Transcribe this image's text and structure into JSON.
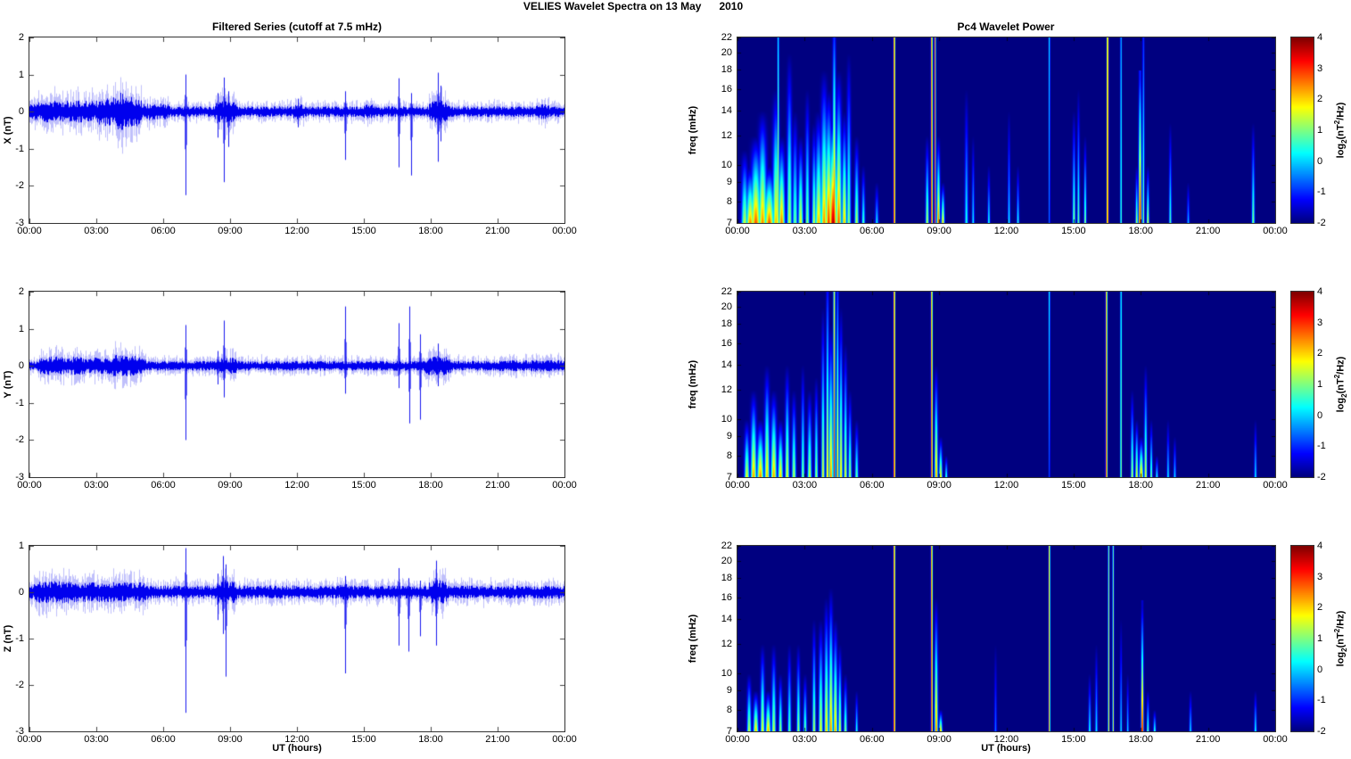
{
  "page_title": "VELIES Wavelet Spectra on 13 May      2010",
  "left_column": {
    "title": "Filtered Series (cutoff at 7.5 mHz)",
    "xlabel": "UT (hours)",
    "xticks": [
      "00:00",
      "03:00",
      "06:00",
      "09:00",
      "12:00",
      "15:00",
      "18:00",
      "21:00",
      "00:00"
    ]
  },
  "right_column": {
    "title": "Pc4 Wavelet Power",
    "xlabel": "UT (hours)",
    "xticks": [
      "00:00",
      "03:00",
      "06:00",
      "09:00",
      "12:00",
      "15:00",
      "18:00",
      "21:00",
      "00:00"
    ],
    "colorbar": {
      "clim": [
        -2,
        4
      ],
      "ticks": [
        4,
        3,
        2,
        1,
        0,
        -1,
        -2
      ],
      "label_parts": {
        "pre": "log",
        "sub": "2",
        "mid": "(nT",
        "sup": "2",
        "post": "/Hz)"
      }
    }
  },
  "chart_data": [
    {
      "type": "line",
      "id": "x-series",
      "ylabel": "X (nT)",
      "ylim": [
        -3,
        2
      ],
      "yticks": [
        2,
        1,
        0,
        -1,
        -2,
        -3
      ],
      "x_range_hours": [
        0,
        24
      ],
      "line_color": "#0000EE",
      "noise_base": 0.12,
      "_envelope_format": "[startHour, endHour, extraAmplitude_nT]",
      "envelope": [
        [
          0.0,
          0.4,
          0.1
        ],
        [
          0.4,
          3.0,
          0.13
        ],
        [
          3.0,
          5.0,
          0.22
        ],
        [
          3.9,
          4.6,
          0.1
        ],
        [
          5.0,
          6.3,
          0.08
        ],
        [
          8.3,
          9.3,
          0.12
        ],
        [
          11.8,
          12.3,
          0.06
        ],
        [
          14.9,
          15.6,
          0.04
        ],
        [
          17.9,
          18.8,
          0.13
        ],
        [
          22.7,
          23.3,
          0.05
        ]
      ],
      "_spikes_format": "[hour, max_nT, min_nT]",
      "spikes": [
        [
          6.98,
          1.0,
          -2.25
        ],
        [
          8.45,
          0.5,
          -0.7
        ],
        [
          8.72,
          0.92,
          -1.9
        ],
        [
          8.92,
          0.55,
          -0.95
        ],
        [
          12.05,
          0.35,
          -0.42
        ],
        [
          14.15,
          0.55,
          -1.3
        ],
        [
          16.55,
          0.9,
          -1.5
        ],
        [
          17.1,
          0.5,
          -1.72
        ],
        [
          18.3,
          1.05,
          -1.35
        ],
        [
          18.45,
          0.7,
          -0.8
        ]
      ]
    },
    {
      "type": "line",
      "id": "y-series",
      "ylabel": "Y (nT)",
      "ylim": [
        -3,
        2
      ],
      "yticks": [
        2,
        1,
        0,
        -1,
        -2,
        -3
      ],
      "x_range_hours": [
        0,
        24
      ],
      "line_color": "#0000EE",
      "noise_base": 0.11,
      "envelope": [
        [
          0.3,
          2.6,
          0.1
        ],
        [
          2.6,
          5.2,
          0.08
        ],
        [
          3.7,
          4.8,
          0.06
        ],
        [
          8.4,
          9.3,
          0.08
        ],
        [
          17.7,
          18.9,
          0.1
        ],
        [
          21.0,
          24.0,
          0.02
        ]
      ],
      "spikes": [
        [
          6.98,
          1.1,
          -2.0
        ],
        [
          8.45,
          0.4,
          -0.5
        ],
        [
          8.72,
          1.22,
          -0.85
        ],
        [
          14.15,
          1.6,
          -0.75
        ],
        [
          16.55,
          1.15,
          -0.6
        ],
        [
          17.05,
          1.6,
          -1.55
        ],
        [
          17.5,
          0.85,
          -1.45
        ],
        [
          18.3,
          0.6,
          -0.55
        ]
      ]
    },
    {
      "type": "line",
      "id": "z-series",
      "ylabel": "Z (nT)",
      "ylim": [
        -3,
        1
      ],
      "yticks": [
        1,
        0,
        -1,
        -2,
        -3
      ],
      "x_range_hours": [
        0,
        24
      ],
      "line_color": "#0000EE",
      "noise_base": 0.12,
      "envelope": [
        [
          0.2,
          2.2,
          0.08
        ],
        [
          2.2,
          5.3,
          0.06
        ],
        [
          8.4,
          9.3,
          0.08
        ],
        [
          13.9,
          14.4,
          0.03
        ],
        [
          17.9,
          18.7,
          0.1
        ]
      ],
      "spikes": [
        [
          6.98,
          0.95,
          -2.6
        ],
        [
          8.45,
          0.4,
          -0.6
        ],
        [
          8.68,
          0.78,
          -0.9
        ],
        [
          8.8,
          0.6,
          -1.82
        ],
        [
          14.15,
          0.35,
          -1.75
        ],
        [
          16.55,
          0.52,
          -1.15
        ],
        [
          17.0,
          0.3,
          -1.28
        ],
        [
          17.5,
          0.25,
          -0.95
        ],
        [
          18.25,
          0.68,
          -1.15
        ]
      ]
    },
    {
      "type": "heatmap",
      "id": "x-wavelet",
      "ylabel": "freq (mHz)",
      "yticks": [
        22,
        20,
        18,
        16,
        14,
        12,
        10,
        9,
        8,
        7
      ],
      "freq_range_mhz": [
        7,
        22
      ],
      "clim": [
        -2,
        4
      ],
      "colormap": "jet",
      "_events_format": "[hour, topFreq_mHz, log2Power_at_7mHz, log2Power_at_top, halfWidth_min]",
      "events": [
        [
          0.3,
          11,
          1.5,
          -2,
          8
        ],
        [
          0.55,
          10,
          2.5,
          -2,
          10
        ],
        [
          0.8,
          12,
          2.8,
          -2,
          12
        ],
        [
          1.1,
          14,
          2.5,
          -2,
          10
        ],
        [
          1.4,
          10,
          2.8,
          -2,
          12
        ],
        [
          1.7,
          16,
          2.2,
          -2,
          8
        ],
        [
          1.8,
          22.4,
          1.8,
          0.2,
          2.2
        ],
        [
          1.95,
          12,
          2.6,
          -2,
          8
        ],
        [
          2.3,
          20,
          1.5,
          -2,
          6
        ],
        [
          2.55,
          14,
          1.0,
          -2,
          6
        ],
        [
          2.8,
          12,
          1.8,
          -2,
          6
        ],
        [
          3.1,
          16,
          1.2,
          -2,
          5
        ],
        [
          3.4,
          13,
          1.6,
          -2,
          5
        ],
        [
          3.6,
          14,
          2.2,
          -2,
          8
        ],
        [
          3.85,
          18,
          2.5,
          -2,
          8
        ],
        [
          4.05,
          16,
          3.0,
          -2,
          8
        ],
        [
          4.25,
          13,
          3.8,
          -1.5,
          10
        ],
        [
          4.3,
          22.4,
          3.2,
          -1,
          4
        ],
        [
          4.5,
          18,
          2.8,
          -2,
          7
        ],
        [
          4.75,
          14,
          2.2,
          -2,
          6
        ],
        [
          4.95,
          20,
          1.2,
          -2,
          5
        ],
        [
          5.3,
          12,
          1.5,
          -2,
          5
        ],
        [
          5.6,
          10,
          0.8,
          -2,
          4
        ],
        [
          6.2,
          9,
          0.2,
          -2,
          4
        ],
        [
          6.98,
          22.4,
          3.6,
          3.0,
          2.2
        ],
        [
          8.45,
          12,
          1.5,
          -2,
          4
        ],
        [
          8.65,
          22.4,
          3.4,
          2.8,
          2.2
        ],
        [
          8.8,
          22.4,
          3.2,
          2.5,
          2
        ],
        [
          8.95,
          12,
          2.8,
          -2,
          4
        ],
        [
          9.15,
          9,
          2.2,
          -2,
          4
        ],
        [
          10.2,
          16,
          0.5,
          -2,
          4
        ],
        [
          10.5,
          12,
          0.3,
          -2,
          3
        ],
        [
          11.2,
          10,
          0.5,
          -2,
          3
        ],
        [
          12.1,
          14,
          0.3,
          -2,
          3
        ],
        [
          12.5,
          10,
          0.5,
          -2,
          3
        ],
        [
          13.9,
          22.4,
          -0.5,
          0.3,
          2
        ],
        [
          15.0,
          14,
          1.2,
          -2,
          3.5
        ],
        [
          15.2,
          16,
          1.0,
          -2,
          3
        ],
        [
          15.5,
          12,
          1.3,
          -2,
          3
        ],
        [
          16.5,
          22.4,
          3.5,
          2.8,
          2.2
        ],
        [
          17.1,
          22.4,
          1.0,
          0.0,
          2
        ],
        [
          17.8,
          10,
          1.5,
          -2,
          3
        ],
        [
          17.95,
          17,
          3.8,
          -1,
          3.5
        ],
        [
          18.1,
          22.4,
          1.2,
          -1,
          2.5
        ],
        [
          18.3,
          10,
          1.8,
          -2,
          3
        ],
        [
          19.3,
          13,
          0.8,
          -2,
          3
        ],
        [
          20.1,
          9,
          0.0,
          -2,
          3
        ],
        [
          23.0,
          13,
          1.2,
          -2,
          3.5
        ]
      ]
    },
    {
      "type": "heatmap",
      "id": "y-wavelet",
      "ylabel": "freq (mHz)",
      "yticks": [
        22,
        20,
        18,
        16,
        14,
        12,
        10,
        9,
        8,
        7
      ],
      "freq_range_mhz": [
        7,
        22
      ],
      "clim": [
        -2,
        4
      ],
      "colormap": "jet",
      "events": [
        [
          0.4,
          10,
          1.8,
          -2,
          6
        ],
        [
          0.7,
          12,
          2.4,
          -2,
          7
        ],
        [
          1.0,
          10,
          2.6,
          -2,
          8
        ],
        [
          1.3,
          14,
          2.2,
          -2,
          6
        ],
        [
          1.6,
          12,
          2.4,
          -2,
          7
        ],
        [
          1.9,
          10,
          2.2,
          -2,
          6
        ],
        [
          2.2,
          14,
          1.8,
          -2,
          5
        ],
        [
          2.5,
          12,
          1.5,
          -2,
          5
        ],
        [
          2.9,
          14,
          1.2,
          -2,
          4
        ],
        [
          3.2,
          12,
          1.6,
          -2,
          5
        ],
        [
          3.5,
          13,
          1.4,
          -2,
          4
        ],
        [
          3.8,
          20,
          1.8,
          -2,
          4
        ],
        [
          4.0,
          22.4,
          2.2,
          -1.2,
          3.5
        ],
        [
          4.15,
          18,
          2.6,
          -2,
          5
        ],
        [
          4.3,
          22.4,
          3.4,
          1.5,
          2.5
        ],
        [
          4.45,
          22.4,
          2.4,
          -1,
          3
        ],
        [
          4.6,
          20,
          2.2,
          -2,
          4
        ],
        [
          4.8,
          16,
          1.8,
          -2,
          4
        ],
        [
          5.0,
          12,
          1.4,
          -2,
          4
        ],
        [
          5.3,
          10,
          1.0,
          -2,
          4
        ],
        [
          6.98,
          22.4,
          3.6,
          3.0,
          2.2
        ],
        [
          8.65,
          22.4,
          3.4,
          2.6,
          2.2
        ],
        [
          8.85,
          14,
          2.6,
          -2,
          4
        ],
        [
          9.05,
          9,
          2.0,
          -2,
          4
        ],
        [
          9.3,
          8,
          0.8,
          -2,
          3
        ],
        [
          13.9,
          22.4,
          -0.8,
          0.5,
          2
        ],
        [
          16.45,
          22.4,
          3.3,
          2.6,
          2.2
        ],
        [
          17.1,
          22.4,
          1.5,
          0.5,
          2
        ],
        [
          17.6,
          12,
          1.5,
          -2,
          3.5
        ],
        [
          17.8,
          10,
          2.0,
          -2,
          3.5
        ],
        [
          18.0,
          9,
          2.6,
          -2,
          5
        ],
        [
          18.2,
          14,
          1.8,
          -2,
          3.5
        ],
        [
          18.45,
          10,
          1.2,
          -2,
          3
        ],
        [
          18.7,
          8,
          0.5,
          -2,
          3
        ],
        [
          19.2,
          10,
          0.3,
          -2,
          3
        ],
        [
          19.5,
          9,
          0.2,
          -2,
          3
        ],
        [
          23.1,
          10,
          0.3,
          -2,
          3
        ]
      ]
    },
    {
      "type": "heatmap",
      "id": "z-wavelet",
      "ylabel": "freq (mHz)",
      "yticks": [
        22,
        20,
        18,
        16,
        14,
        12,
        10,
        9,
        8,
        7
      ],
      "freq_range_mhz": [
        7,
        22
      ],
      "clim": [
        -2,
        4
      ],
      "colormap": "jet",
      "events": [
        [
          0.5,
          10,
          1.6,
          -2,
          5
        ],
        [
          0.8,
          9,
          2.2,
          -2,
          6
        ],
        [
          1.1,
          12,
          1.8,
          -2,
          5
        ],
        [
          1.35,
          9,
          2.4,
          -2,
          6
        ],
        [
          1.6,
          12,
          1.6,
          -2,
          5
        ],
        [
          1.9,
          10,
          1.4,
          -2,
          4
        ],
        [
          2.3,
          12,
          1.0,
          -2,
          4
        ],
        [
          2.7,
          12,
          1.4,
          -2,
          4
        ],
        [
          3.0,
          10,
          1.1,
          -2,
          4
        ],
        [
          3.4,
          14,
          1.5,
          -2,
          4
        ],
        [
          3.7,
          14,
          1.8,
          -2,
          5
        ],
        [
          3.95,
          16,
          2.2,
          -2,
          5
        ],
        [
          4.15,
          17,
          2.6,
          -2,
          5
        ],
        [
          4.35,
          14,
          2.4,
          -2,
          5
        ],
        [
          4.55,
          12,
          1.8,
          -2,
          4
        ],
        [
          4.8,
          10,
          1.2,
          -2,
          4
        ],
        [
          5.3,
          9,
          0.6,
          -2,
          3
        ],
        [
          6.98,
          22.4,
          3.6,
          3.0,
          2.2
        ],
        [
          8.65,
          22.4,
          3.5,
          2.8,
          2.2
        ],
        [
          8.85,
          16,
          2.8,
          -2,
          4
        ],
        [
          9.05,
          8,
          2.2,
          -2,
          4
        ],
        [
          11.5,
          12,
          -0.5,
          -2,
          3
        ],
        [
          13.9,
          22.4,
          2.6,
          2.0,
          2
        ],
        [
          15.7,
          10,
          0.5,
          -2,
          3
        ],
        [
          16.0,
          12,
          0.3,
          -2,
          3
        ],
        [
          16.55,
          22.4,
          1.8,
          1.0,
          2
        ],
        [
          16.75,
          22.4,
          1.5,
          0.8,
          2
        ],
        [
          17.1,
          14,
          0.3,
          -2,
          2.5
        ],
        [
          17.4,
          10,
          0.2,
          -2,
          2.5
        ],
        [
          18.05,
          15,
          3.7,
          -1.5,
          3
        ],
        [
          18.3,
          9,
          1.0,
          -2,
          3
        ],
        [
          18.6,
          8,
          0.8,
          -2,
          3
        ],
        [
          20.2,
          9,
          0.2,
          -2,
          3
        ],
        [
          23.1,
          9,
          0.5,
          -2,
          3
        ]
      ]
    }
  ]
}
